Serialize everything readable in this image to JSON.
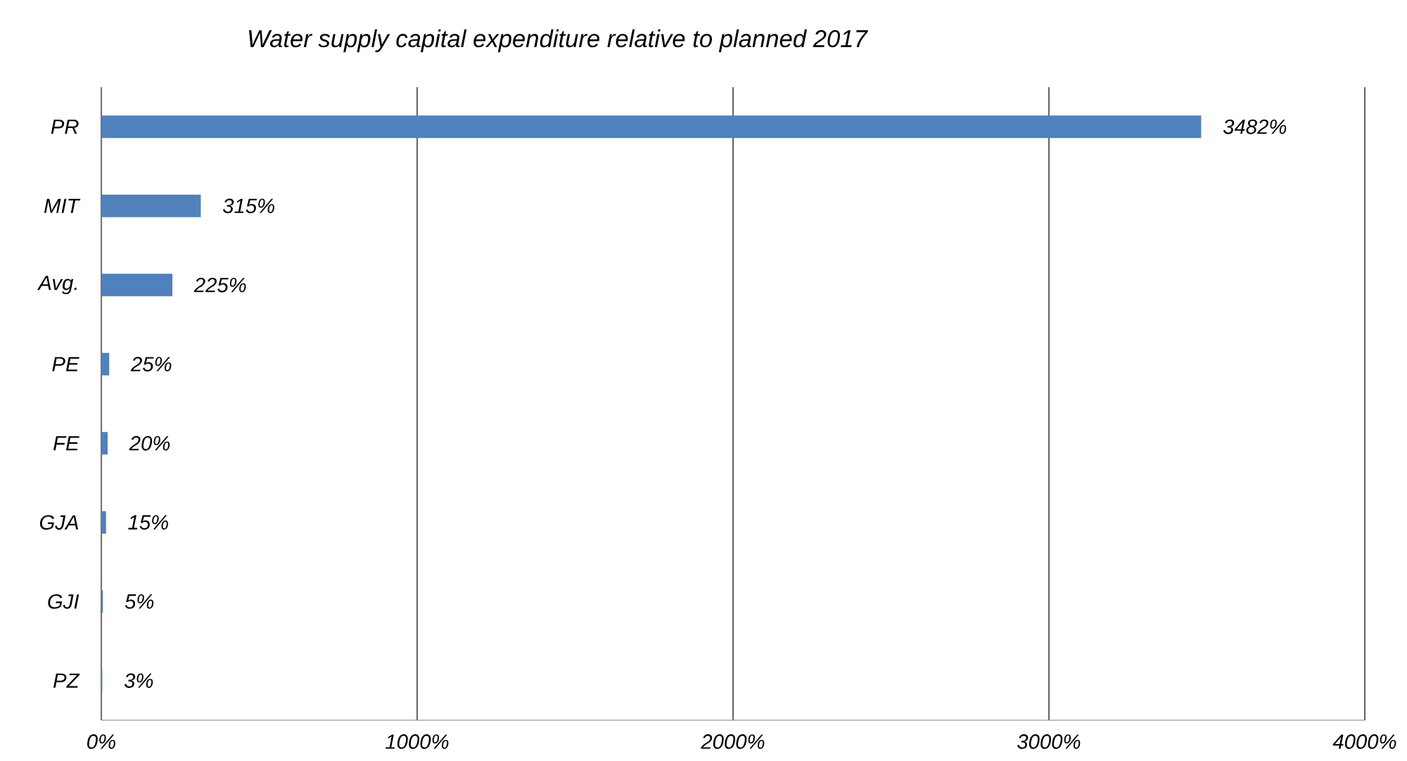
{
  "chart_data": {
    "type": "bar",
    "orientation": "horizontal",
    "title": "Water supply capital expenditure relative to planned 2017",
    "categories": [
      "PR",
      "MIT",
      "Avg.",
      "PE",
      "FE",
      "GJA",
      "GJI",
      "PZ"
    ],
    "values": [
      3482,
      315,
      225,
      25,
      20,
      15,
      5,
      3
    ],
    "value_labels": [
      "3482%",
      "315%",
      "225%",
      "25%",
      "20%",
      "15%",
      "5%",
      "3%"
    ],
    "color": "#4f81bd",
    "xlim": [
      0,
      4000
    ],
    "xticks": [
      {
        "value": 0,
        "label": "0%"
      },
      {
        "value": 1000,
        "label": "1000%"
      },
      {
        "value": 2000,
        "label": "2000%"
      },
      {
        "value": 3000,
        "label": "3000%"
      },
      {
        "value": 4000,
        "label": "4000%"
      }
    ],
    "grid": "x"
  }
}
